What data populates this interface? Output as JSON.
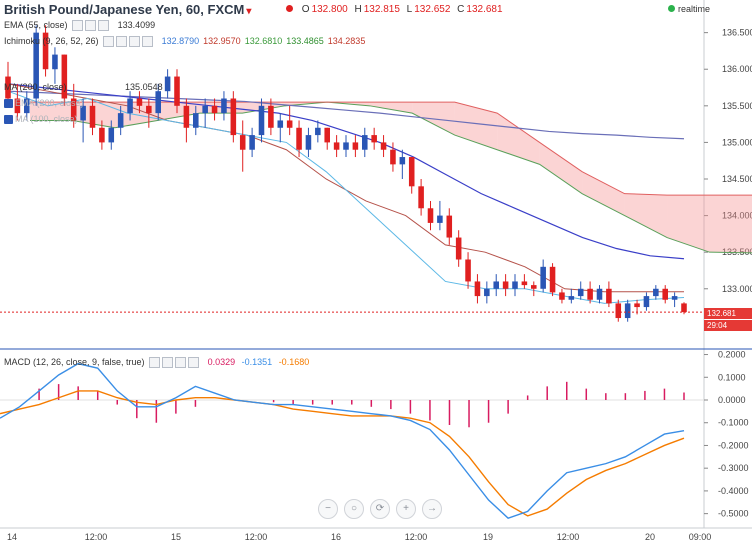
{
  "header": {
    "title": "British Pound/Japanese Yen, 60, FXCM",
    "ohlc": [
      {
        "k": "O",
        "v": "132.800"
      },
      {
        "k": "H",
        "v": "132.815"
      },
      {
        "k": "L",
        "v": "132.652"
      },
      {
        "k": "C",
        "v": "132.681"
      }
    ],
    "realtime_label": "realtime"
  },
  "indicators": [
    {
      "label": "EMA (55, close)",
      "value": "133.4099",
      "faint": false
    },
    {
      "label": "Ichimoku (9, 26, 52, 26)",
      "value": "",
      "faint": false
    },
    {
      "label": "MA (200, close)",
      "value": "135.0548",
      "faint": false
    },
    {
      "label": "EMA (200, close)",
      "value": "",
      "faint": true
    },
    {
      "label": "MA (100, close)",
      "value": "",
      "faint": true
    }
  ],
  "ichimoku_values": [
    {
      "v": "132.8790",
      "color": "#3a7bd5"
    },
    {
      "v": "132.9570",
      "color": "#c0392b"
    },
    {
      "v": "132.6810",
      "color": "#3a9a3a"
    },
    {
      "v": "133.4865",
      "color": "#2f8f2f"
    },
    {
      "v": "134.2835",
      "color": "#c0392b"
    }
  ],
  "price_badge": "132.681",
  "time_badge": "29:04",
  "macd_header": {
    "label": "MACD (12, 26, close, 9, false, true)",
    "hist": "0.0329",
    "macd": "-0.1351",
    "signal": "-0.1680",
    "hist_color": "#d81b60",
    "macd_color": "#3a8ee6",
    "signal_color": "#f57c00"
  },
  "nav_buttons": [
    "−",
    "○",
    "⟳",
    "+",
    "→"
  ],
  "chart_data": [
    {
      "type": "candlestick",
      "title": "British Pound/Japanese Yen, 60, FXCM",
      "ylim": [
        132.3,
        136.7
      ],
      "yticks": [
        "136.500",
        "136.000",
        "135.500",
        "135.000",
        "134.500",
        "134.000",
        "133.500",
        "133.000"
      ],
      "xticks": [
        "14",
        "12:00",
        "15",
        "12:00",
        "16",
        "12:00",
        "19",
        "12:00",
        "20",
        "09:00"
      ],
      "candles": [
        [
          135.9,
          136.1,
          135.5,
          135.6
        ],
        [
          135.6,
          135.8,
          135.3,
          135.4
        ],
        [
          135.4,
          135.7,
          135.3,
          135.6
        ],
        [
          135.6,
          136.6,
          135.5,
          136.5
        ],
        [
          136.5,
          136.6,
          135.9,
          136.0
        ],
        [
          136.0,
          136.3,
          135.8,
          136.2
        ],
        [
          136.2,
          136.2,
          135.5,
          135.6
        ],
        [
          135.6,
          135.8,
          135.2,
          135.3
        ],
        [
          135.3,
          135.6,
          135.0,
          135.5
        ],
        [
          135.5,
          135.6,
          135.1,
          135.2
        ],
        [
          135.2,
          135.3,
          134.9,
          135.0
        ],
        [
          135.0,
          135.3,
          134.9,
          135.2
        ],
        [
          135.2,
          135.5,
          135.1,
          135.4
        ],
        [
          135.4,
          135.7,
          135.3,
          135.6
        ],
        [
          135.6,
          135.7,
          135.4,
          135.5
        ],
        [
          135.5,
          135.6,
          135.2,
          135.4
        ],
        [
          135.4,
          135.8,
          135.3,
          135.7
        ],
        [
          135.7,
          136.0,
          135.6,
          135.9
        ],
        [
          135.9,
          136.0,
          135.4,
          135.5
        ],
        [
          135.5,
          135.6,
          135.0,
          135.2
        ],
        [
          135.2,
          135.5,
          135.1,
          135.4
        ],
        [
          135.4,
          135.6,
          135.2,
          135.5
        ],
        [
          135.5,
          135.6,
          135.3,
          135.4
        ],
        [
          135.4,
          135.7,
          135.3,
          135.6
        ],
        [
          135.6,
          135.7,
          135.0,
          135.1
        ],
        [
          135.1,
          135.3,
          134.6,
          134.9
        ],
        [
          134.9,
          135.2,
          134.8,
          135.1
        ],
        [
          135.1,
          135.6,
          135.0,
          135.5
        ],
        [
          135.5,
          135.6,
          135.1,
          135.2
        ],
        [
          135.2,
          135.4,
          135.0,
          135.3
        ],
        [
          135.3,
          135.5,
          135.1,
          135.2
        ],
        [
          135.2,
          135.3,
          134.8,
          134.9
        ],
        [
          134.9,
          135.2,
          134.8,
          135.1
        ],
        [
          135.1,
          135.3,
          135.0,
          135.2
        ],
        [
          135.2,
          135.2,
          134.9,
          135.0
        ],
        [
          135.0,
          135.1,
          134.8,
          134.9
        ],
        [
          134.9,
          135.1,
          134.8,
          135.0
        ],
        [
          135.0,
          135.1,
          134.8,
          134.9
        ],
        [
          134.9,
          135.2,
          134.8,
          135.1
        ],
        [
          135.1,
          135.2,
          134.9,
          135.0
        ],
        [
          135.0,
          135.1,
          134.8,
          134.9
        ],
        [
          134.9,
          135.0,
          134.6,
          134.7
        ],
        [
          134.7,
          134.9,
          134.5,
          134.8
        ],
        [
          134.8,
          134.8,
          134.3,
          134.4
        ],
        [
          134.4,
          134.5,
          134.0,
          134.1
        ],
        [
          134.1,
          134.2,
          133.8,
          133.9
        ],
        [
          133.9,
          134.2,
          133.8,
          134.0
        ],
        [
          134.0,
          134.1,
          133.6,
          133.7
        ],
        [
          133.7,
          133.8,
          133.3,
          133.4
        ],
        [
          133.4,
          133.5,
          133.0,
          133.1
        ],
        [
          133.1,
          133.2,
          132.8,
          132.9
        ],
        [
          132.9,
          133.1,
          132.8,
          133.0
        ],
        [
          133.0,
          133.2,
          132.9,
          133.1
        ],
        [
          133.1,
          133.2,
          132.9,
          133.0
        ],
        [
          133.0,
          133.2,
          132.9,
          133.1
        ],
        [
          133.1,
          133.2,
          133.0,
          133.05
        ],
        [
          133.05,
          133.1,
          132.9,
          133.0
        ],
        [
          133.0,
          133.4,
          132.95,
          133.3
        ],
        [
          133.3,
          133.35,
          132.9,
          132.95
        ],
        [
          132.95,
          133.0,
          132.8,
          132.85
        ],
        [
          132.85,
          133.0,
          132.8,
          132.9
        ],
        [
          132.9,
          133.1,
          132.85,
          133.0
        ],
        [
          133.0,
          133.1,
          132.8,
          132.85
        ],
        [
          132.85,
          133.05,
          132.8,
          133.0
        ],
        [
          133.0,
          133.1,
          132.75,
          132.8
        ],
        [
          132.8,
          132.85,
          132.55,
          132.6
        ],
        [
          132.6,
          132.85,
          132.55,
          132.8
        ],
        [
          132.8,
          132.85,
          132.65,
          132.75
        ],
        [
          132.75,
          132.95,
          132.7,
          132.9
        ],
        [
          132.9,
          133.05,
          132.85,
          133.0
        ],
        [
          133.0,
          133.05,
          132.8,
          132.85
        ],
        [
          132.85,
          132.95,
          132.75,
          132.9
        ],
        [
          132.8,
          132.815,
          132.652,
          132.681
        ]
      ],
      "ema55": [
        135.8,
        135.75,
        135.7,
        135.65,
        135.6,
        135.55,
        135.5,
        135.45,
        135.4,
        135.3,
        135.15,
        135.0,
        134.8,
        134.55,
        134.3,
        134.1,
        133.9,
        133.7,
        133.55,
        133.45,
        133.41
      ],
      "ma200": [
        135.7,
        135.68,
        135.66,
        135.64,
        135.62,
        135.6,
        135.58,
        135.56,
        135.52,
        135.48,
        135.44,
        135.4,
        135.35,
        135.3,
        135.25,
        135.2,
        135.15,
        135.12,
        135.1,
        135.07,
        135.05
      ],
      "ichimoku": {
        "tenkan": [
          135.7,
          135.5,
          135.6,
          135.4,
          135.3,
          135.2,
          135.1,
          135.0,
          134.6,
          134.1,
          133.6,
          133.1,
          133.0,
          133.0,
          132.9,
          132.8,
          132.85,
          132.88
        ],
        "kijun": [
          135.8,
          135.7,
          135.6,
          135.5,
          135.3,
          135.2,
          135.1,
          134.9,
          134.5,
          134.2,
          134.0,
          133.6,
          133.5,
          133.3,
          133.0,
          132.96,
          132.96,
          132.96
        ],
        "span_a": [
          135.3,
          135.3,
          135.2,
          135.3,
          135.4,
          135.4,
          135.5,
          135.55,
          135.5,
          135.4,
          135.1,
          134.9,
          134.7,
          134.3,
          134.0,
          133.7,
          133.5,
          133.49
        ],
        "span_b": [
          135.55,
          135.55,
          135.55,
          135.55,
          135.55,
          135.55,
          135.55,
          135.55,
          135.55,
          135.55,
          135.55,
          135.4,
          135.0,
          134.6,
          134.3,
          134.28,
          134.28,
          134.28
        ]
      }
    },
    {
      "type": "macd",
      "title": "MACD (12, 26, close, 9, false, true)",
      "ylim": [
        -0.55,
        0.22
      ],
      "yticks": [
        "0.2000",
        "0.1000",
        "0.0000",
        "-0.1000",
        "-0.2000",
        "-0.3000",
        "-0.4000",
        "-0.5000"
      ],
      "macd": [
        -0.08,
        -0.03,
        0.04,
        0.11,
        0.16,
        0.14,
        0.04,
        -0.03,
        -0.03,
        0.01,
        0.06,
        0.03,
        0.0,
        -0.01,
        -0.02,
        -0.02,
        -0.03,
        -0.04,
        -0.05,
        -0.06,
        -0.07,
        -0.09,
        -0.13,
        -0.22,
        -0.33,
        -0.44,
        -0.52,
        -0.49,
        -0.4,
        -0.32,
        -0.3,
        -0.28,
        -0.25,
        -0.2,
        -0.15,
        -0.135
      ],
      "signal": [
        -0.06,
        -0.04,
        -0.02,
        0.01,
        0.04,
        0.04,
        0.01,
        -0.01,
        -0.02,
        -0.0,
        0.01,
        0.01,
        0.0,
        -0.01,
        -0.02,
        -0.04,
        -0.05,
        -0.06,
        -0.07,
        -0.07,
        -0.07,
        -0.08,
        -0.1,
        -0.16,
        -0.25,
        -0.36,
        -0.46,
        -0.51,
        -0.48,
        -0.41,
        -0.35,
        -0.31,
        -0.28,
        -0.24,
        -0.2,
        -0.168
      ],
      "histogram": [
        0.0,
        0.0,
        0.05,
        0.07,
        0.06,
        0.04,
        -0.02,
        -0.08,
        -0.1,
        -0.06,
        -0.03,
        0.0,
        0.0,
        0.0,
        -0.01,
        -0.02,
        -0.02,
        -0.02,
        -0.02,
        -0.03,
        -0.04,
        -0.06,
        -0.09,
        -0.11,
        -0.12,
        -0.1,
        -0.06,
        0.02,
        0.06,
        0.08,
        0.05,
        0.03,
        0.03,
        0.04,
        0.05,
        0.033
      ]
    }
  ]
}
